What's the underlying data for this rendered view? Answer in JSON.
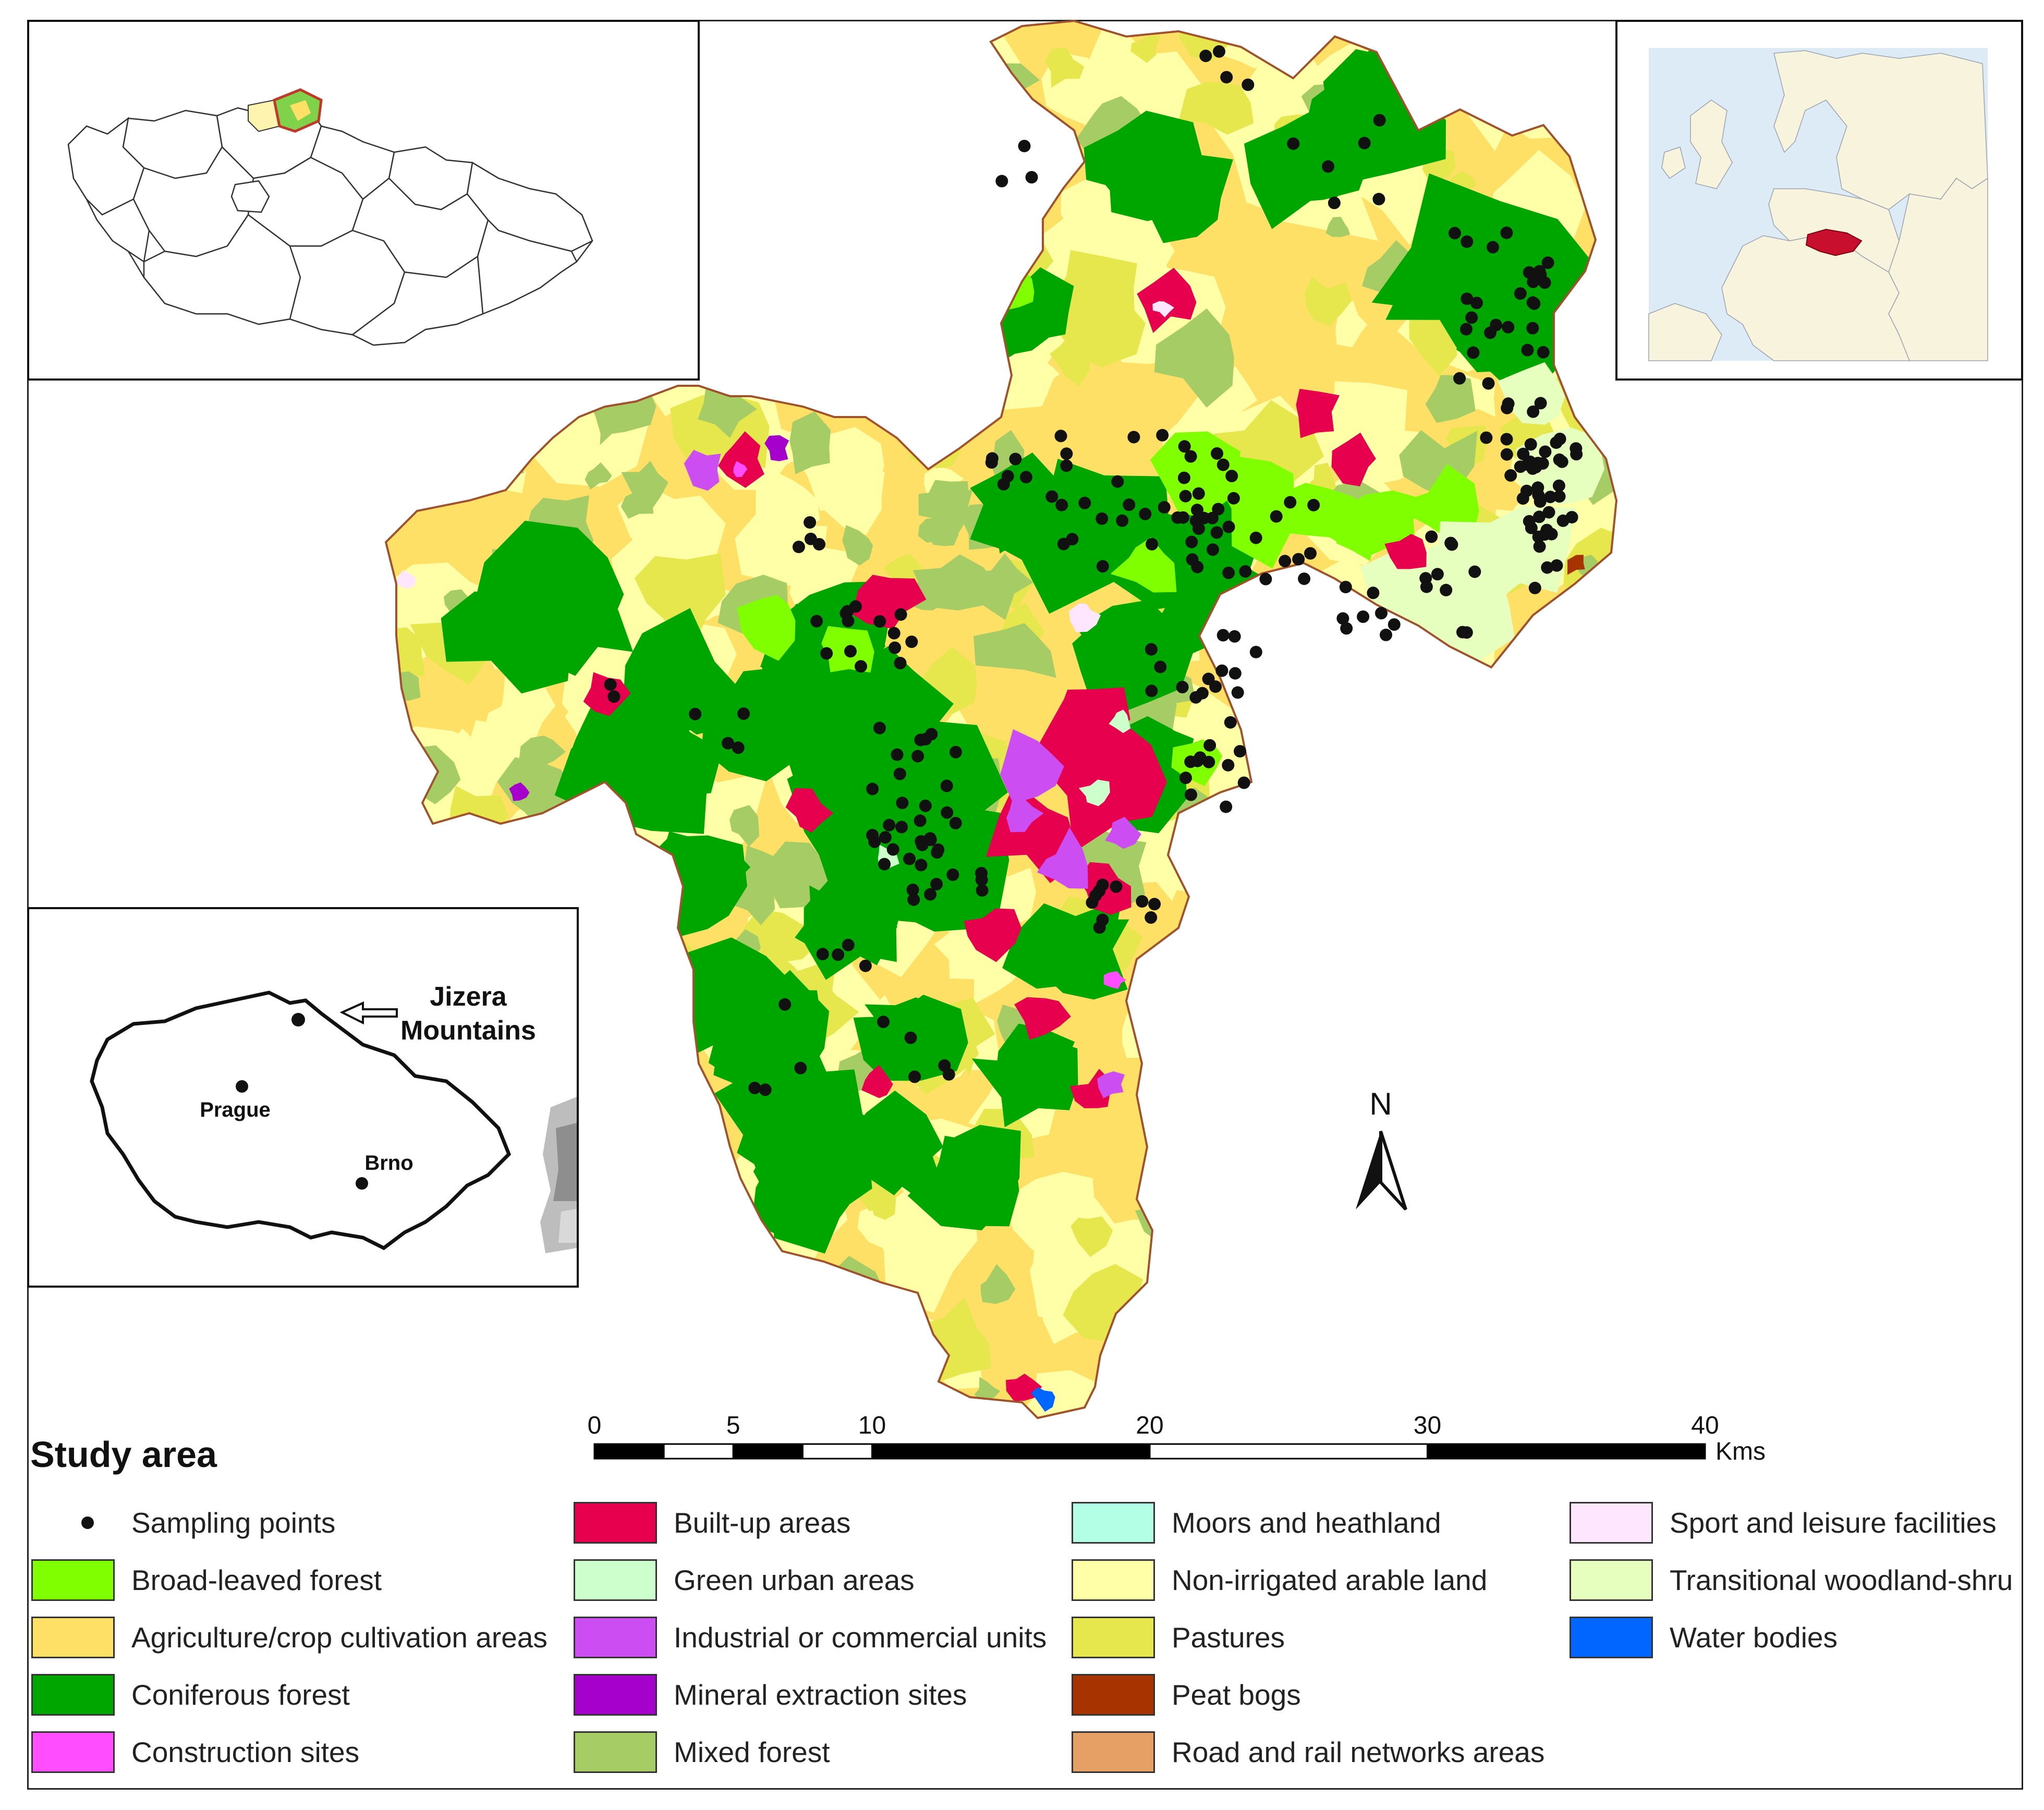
{
  "legend": {
    "title": "Study area",
    "items": [
      {
        "label": "Sampling points",
        "kind": "point",
        "color": "#111111"
      },
      {
        "label": "Broad-leaved forest",
        "color": "#80FF00"
      },
      {
        "label": "Agriculture/crop cultivation areas",
        "color": "#FFE066"
      },
      {
        "label": "Coniferous forest",
        "color": "#00A600"
      },
      {
        "label": "Construction sites",
        "color": "#FF4DFF"
      },
      {
        "label": "Built-up areas",
        "color": "#E6004D"
      },
      {
        "label": "Green urban areas",
        "color": "#CCFFCC"
      },
      {
        "label": "Industrial or commercial units",
        "color": "#CC4DF2"
      },
      {
        "label": "Mineral extraction sites",
        "color": "#A600CC"
      },
      {
        "label": "Mixed forest",
        "color": "#A6CC66"
      },
      {
        "label": "Moors and heathland",
        "color": "#B3FFE6"
      },
      {
        "label": "Non-irrigated arable land",
        "color": "#FFFFA8"
      },
      {
        "label": "Pastures",
        "color": "#E6E64D"
      },
      {
        "label": "Peat bogs",
        "color": "#A63300"
      },
      {
        "label": "Road and rail networks areas",
        "color": "#E6A066"
      },
      {
        "label": "Sport and leisure facilities",
        "color": "#FFE6FF"
      },
      {
        "label": "Transitional woodland-shru",
        "color": "#E6FFBF"
      },
      {
        "label": "Water bodies",
        "color": "#0066FF"
      }
    ]
  },
  "scale_bar": {
    "ticks": [
      0,
      5,
      10,
      20,
      30,
      40
    ],
    "unit": "Kms"
  },
  "north_arrow": {
    "label": "N",
    "icon": "north-arrow-icon"
  },
  "inset_country": {
    "place_label_line1": "Jizera",
    "place_label_line2": "Mountains",
    "cities": [
      {
        "name": "Prague"
      },
      {
        "name": "Brno"
      }
    ]
  },
  "inset_europe": {
    "highlight_color": "#C8102E",
    "sea_color": "#DCEBF5",
    "land_color": "#F7F3DC"
  }
}
